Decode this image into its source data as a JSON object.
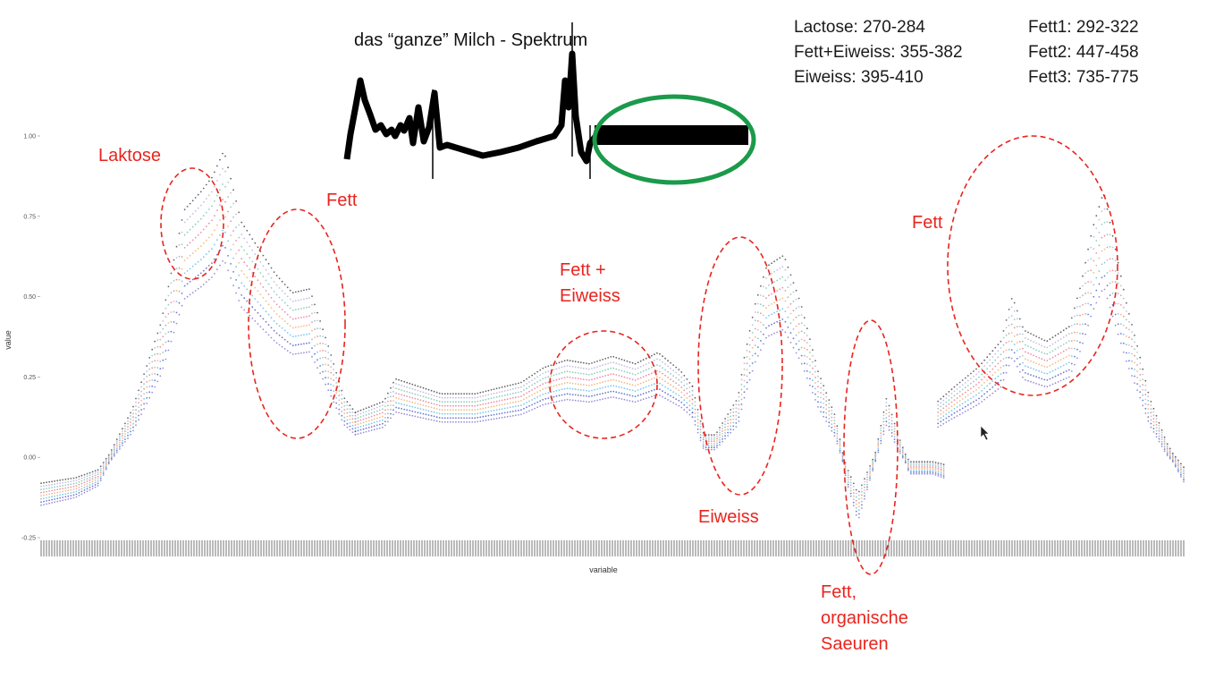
{
  "reference_ranges": [
    [
      "Lactose: 270-284",
      "Fett1: 292-322"
    ],
    [
      "Fett+Eiweiss: 355-382",
      "Fett2: 447-458"
    ],
    [
      "Eiweiss: 395-410",
      "Fett3: 735-775"
    ]
  ],
  "inset": {
    "title": "das “ganze” Milch - Spektrum",
    "highlight_color": "#1a9a4a"
  },
  "annotations": {
    "laktose": "Laktose",
    "fett_1": "Fett",
    "fett_eiweiss_1": "Fett +",
    "fett_eiweiss_2": "Eiweiss",
    "eiweiss": "Eiweiss",
    "fett_org_1": "Fett,",
    "fett_org_2": "organische",
    "fett_org_3": "Saeuren",
    "fett_3": "Fett",
    "color": "#e8251f"
  },
  "chart_data": {
    "type": "scatter",
    "xlabel": "variable",
    "ylabel": "value",
    "yticks": [
      "1.00",
      "0.75",
      "0.50",
      "0.25",
      "0.00",
      "-0.25"
    ],
    "ylim": [
      -0.25,
      1.05
    ],
    "x_range": [
      0,
      1
    ],
    "grid": false,
    "legend": "none",
    "series_colors": [
      "#7b68c8",
      "#3b4cc0",
      "#4fb6e8",
      "#f2a65a",
      "#e86a8a",
      "#66c2a5",
      "#b0a8d8",
      "#333333"
    ],
    "segments": [
      {
        "x": [
          0.0,
          0.03,
          0.05,
          0.08,
          0.105,
          0.125,
          0.14,
          0.15,
          0.16,
          0.175,
          0.19,
          0.205,
          0.22,
          0.235,
          0.25,
          0.265,
          0.275
        ],
        "y": [
          -0.11,
          -0.09,
          -0.06,
          0.12,
          0.35,
          0.65,
          0.7,
          0.74,
          0.81,
          0.62,
          0.55,
          0.48,
          0.43,
          0.44,
          0.3,
          0.15,
          0.11
        ]
      },
      {
        "x": [
          0.275,
          0.3,
          0.31,
          0.33,
          0.35,
          0.38,
          0.42,
          0.44,
          0.46,
          0.48,
          0.5,
          0.52,
          0.54,
          0.56,
          0.57
        ],
        "y": [
          0.11,
          0.14,
          0.2,
          0.18,
          0.16,
          0.16,
          0.19,
          0.23,
          0.25,
          0.24,
          0.26,
          0.24,
          0.27,
          0.22,
          0.18
        ]
      },
      {
        "x": [
          0.57,
          0.58,
          0.59,
          0.6,
          0.61,
          0.615,
          0.625,
          0.635,
          0.65,
          0.665,
          0.68,
          0.695,
          0.705,
          0.715,
          0.72,
          0.73,
          0.74,
          0.75,
          0.76,
          0.78,
          0.79
        ],
        "y": [
          0.18,
          0.05,
          0.05,
          0.1,
          0.15,
          0.25,
          0.4,
          0.5,
          0.53,
          0.4,
          0.22,
          0.1,
          -0.05,
          -0.15,
          -0.1,
          0.0,
          0.15,
          0.05,
          -0.03,
          -0.03,
          -0.04
        ]
      },
      {
        "x": [
          0.785,
          0.8,
          0.82,
          0.84,
          0.85,
          0.86,
          0.88,
          0.9,
          0.91,
          0.92,
          0.93,
          0.94,
          0.95,
          0.96,
          0.97,
          0.985,
          1.0
        ],
        "y": [
          0.14,
          0.18,
          0.23,
          0.3,
          0.42,
          0.33,
          0.3,
          0.34,
          0.45,
          0.6,
          0.7,
          0.55,
          0.4,
          0.28,
          0.15,
          0.03,
          -0.05
        ]
      }
    ],
    "annotation_ellipses": [
      {
        "label": "Laktose",
        "x_center": 0.143,
        "y_center": 0.73
      },
      {
        "label": "Fett",
        "x_center": 0.238,
        "y_center": 0.43
      },
      {
        "label": "Fett + Eiweiss",
        "x_center": 0.494,
        "y_center": 0.23
      },
      {
        "label": "Eiweiss",
        "x_center": 0.618,
        "y_center": 0.32
      },
      {
        "label": "Fett, organische Saeuren",
        "x_center": 0.724,
        "y_center": 0.06
      },
      {
        "label": "Fett",
        "x_center": 0.867,
        "y_center": 0.6
      }
    ]
  }
}
